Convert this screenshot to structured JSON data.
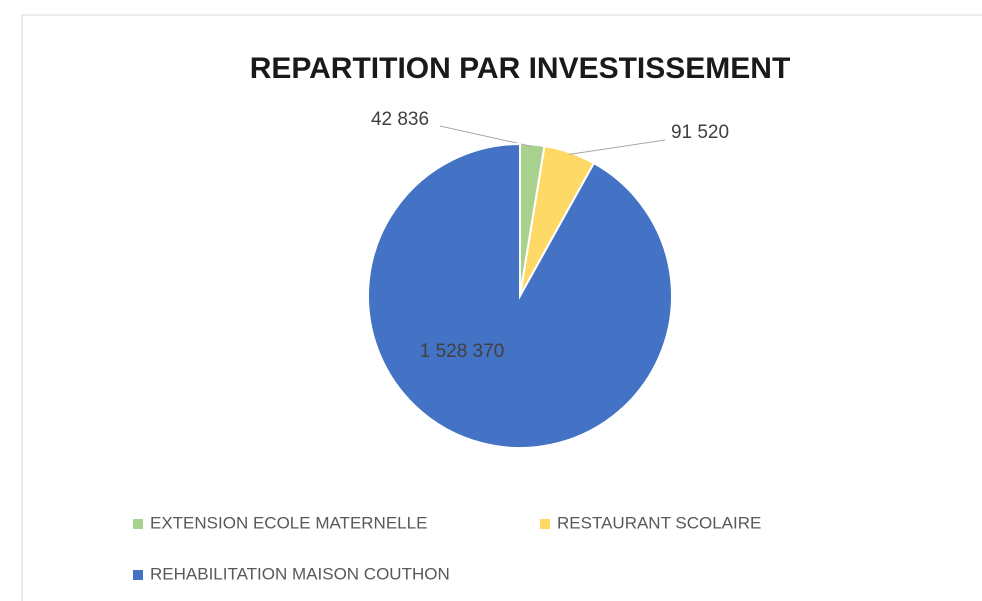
{
  "chart_data": {
    "type": "pie",
    "title": "REPARTITION PAR INVESTISSEMENT",
    "categories": [
      "EXTENSION ECOLE MATERNELLE",
      "RESTAURANT SCOLAIRE",
      "REHABILITATION MAISON COUTHON"
    ],
    "values": [
      42836,
      91520,
      1528370
    ],
    "value_labels": [
      "42 836",
      "91 520",
      "1 528 370"
    ],
    "colors": [
      "#a9d18e",
      "#ffd966",
      "#4472c4"
    ],
    "legend": "bottom"
  }
}
